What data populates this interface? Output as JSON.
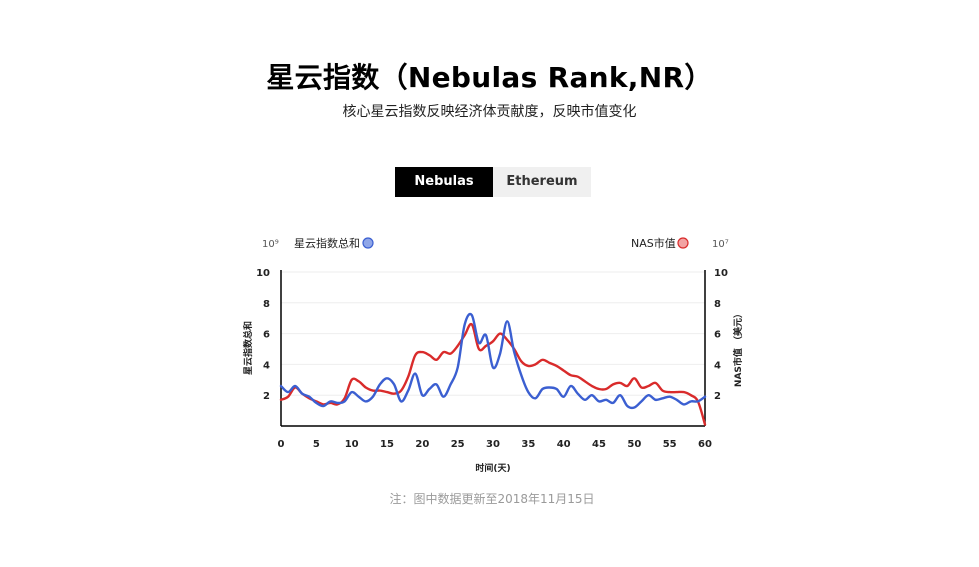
{
  "header": {
    "title": "星云指数（Nebulas Rank,NR）",
    "subtitle": "核心星云指数反映经济体贡献度，反映市值变化"
  },
  "tabs": [
    {
      "label": "Nebulas",
      "active": true
    },
    {
      "label": "Ethereum",
      "active": false
    }
  ],
  "footnote": "注：图中数据更新至2018年11月15日",
  "chart_data": {
    "type": "line",
    "xlabel": "时间(天)",
    "x_ticks": [
      0,
      5,
      10,
      15,
      20,
      25,
      30,
      35,
      40,
      45,
      50,
      55,
      60
    ],
    "xlim": [
      0,
      60
    ],
    "y_left": {
      "label": "星云指数总和",
      "exponent": "10⁹",
      "ticks": [
        2,
        4,
        6,
        8,
        10
      ],
      "ylim": [
        0,
        10
      ]
    },
    "y_right": {
      "label": "NAS市值 （美元）",
      "exponent": "10⁷",
      "ticks": [
        2,
        4,
        6,
        8,
        10
      ],
      "ylim": [
        0,
        10
      ]
    },
    "legend": [
      {
        "name": "星云指数总和",
        "color": "#3b5fd1",
        "placement": "top-left"
      },
      {
        "name": "NAS市值",
        "color": "#d92b2b",
        "placement": "top-right"
      }
    ],
    "series": [
      {
        "name": "星云指数总和",
        "axis": "left",
        "color": "#3b5fd1",
        "points": [
          [
            0,
            2.6
          ],
          [
            1,
            2.2
          ],
          [
            2,
            2.6
          ],
          [
            3,
            2.1
          ],
          [
            4,
            1.9
          ],
          [
            5,
            1.5
          ],
          [
            6,
            1.3
          ],
          [
            7,
            1.6
          ],
          [
            8,
            1.5
          ],
          [
            9,
            1.6
          ],
          [
            10,
            2.2
          ],
          [
            11,
            1.9
          ],
          [
            12,
            1.6
          ],
          [
            13,
            1.9
          ],
          [
            14,
            2.7
          ],
          [
            15,
            3.1
          ],
          [
            16,
            2.7
          ],
          [
            17,
            1.6
          ],
          [
            18,
            2.3
          ],
          [
            19,
            3.4
          ],
          [
            20,
            2.0
          ],
          [
            21,
            2.4
          ],
          [
            22,
            2.7
          ],
          [
            23,
            1.9
          ],
          [
            24,
            2.7
          ],
          [
            25,
            3.8
          ],
          [
            26,
            6.6
          ],
          [
            27,
            7.2
          ],
          [
            28,
            5.4
          ],
          [
            29,
            5.9
          ],
          [
            30,
            3.8
          ],
          [
            31,
            4.7
          ],
          [
            32,
            6.8
          ],
          [
            33,
            4.8
          ],
          [
            34,
            3.3
          ],
          [
            35,
            2.2
          ],
          [
            36,
            1.8
          ],
          [
            37,
            2.4
          ],
          [
            38,
            2.5
          ],
          [
            39,
            2.4
          ],
          [
            40,
            1.9
          ],
          [
            41,
            2.6
          ],
          [
            42,
            2.1
          ],
          [
            43,
            1.7
          ],
          [
            44,
            2.0
          ],
          [
            45,
            1.6
          ],
          [
            46,
            1.7
          ],
          [
            47,
            1.5
          ],
          [
            48,
            2.0
          ],
          [
            49,
            1.3
          ],
          [
            50,
            1.2
          ],
          [
            51,
            1.6
          ],
          [
            52,
            2.0
          ],
          [
            53,
            1.7
          ],
          [
            54,
            1.8
          ],
          [
            55,
            1.9
          ],
          [
            56,
            1.7
          ],
          [
            57,
            1.4
          ],
          [
            58,
            1.6
          ],
          [
            59,
            1.6
          ],
          [
            60,
            1.9
          ]
        ]
      },
      {
        "name": "NAS市值",
        "axis": "right",
        "color": "#d92b2b",
        "points": [
          [
            0,
            1.7
          ],
          [
            1,
            1.9
          ],
          [
            2,
            2.5
          ],
          [
            3,
            2.1
          ],
          [
            4,
            1.8
          ],
          [
            5,
            1.6
          ],
          [
            6,
            1.4
          ],
          [
            7,
            1.5
          ],
          [
            8,
            1.4
          ],
          [
            9,
            1.8
          ],
          [
            10,
            3.0
          ],
          [
            11,
            2.9
          ],
          [
            12,
            2.5
          ],
          [
            13,
            2.3
          ],
          [
            14,
            2.3
          ],
          [
            15,
            2.2
          ],
          [
            16,
            2.1
          ],
          [
            17,
            2.3
          ],
          [
            18,
            3.2
          ],
          [
            19,
            4.6
          ],
          [
            20,
            4.8
          ],
          [
            21,
            4.6
          ],
          [
            22,
            4.3
          ],
          [
            23,
            4.8
          ],
          [
            24,
            4.7
          ],
          [
            25,
            5.2
          ],
          [
            26,
            5.9
          ],
          [
            27,
            6.6
          ],
          [
            28,
            5.0
          ],
          [
            29,
            5.2
          ],
          [
            30,
            5.5
          ],
          [
            31,
            6.0
          ],
          [
            32,
            5.6
          ],
          [
            33,
            5.0
          ],
          [
            34,
            4.2
          ],
          [
            35,
            3.9
          ],
          [
            36,
            4.0
          ],
          [
            37,
            4.3
          ],
          [
            38,
            4.1
          ],
          [
            39,
            3.9
          ],
          [
            40,
            3.6
          ],
          [
            41,
            3.3
          ],
          [
            42,
            3.2
          ],
          [
            43,
            2.9
          ],
          [
            44,
            2.6
          ],
          [
            45,
            2.4
          ],
          [
            46,
            2.4
          ],
          [
            47,
            2.7
          ],
          [
            48,
            2.8
          ],
          [
            49,
            2.6
          ],
          [
            50,
            3.1
          ],
          [
            51,
            2.5
          ],
          [
            52,
            2.6
          ],
          [
            53,
            2.8
          ],
          [
            54,
            2.3
          ],
          [
            55,
            2.2
          ],
          [
            56,
            2.2
          ],
          [
            57,
            2.2
          ],
          [
            58,
            2.0
          ],
          [
            59,
            1.6
          ],
          [
            60,
            0.1
          ]
        ]
      }
    ]
  }
}
